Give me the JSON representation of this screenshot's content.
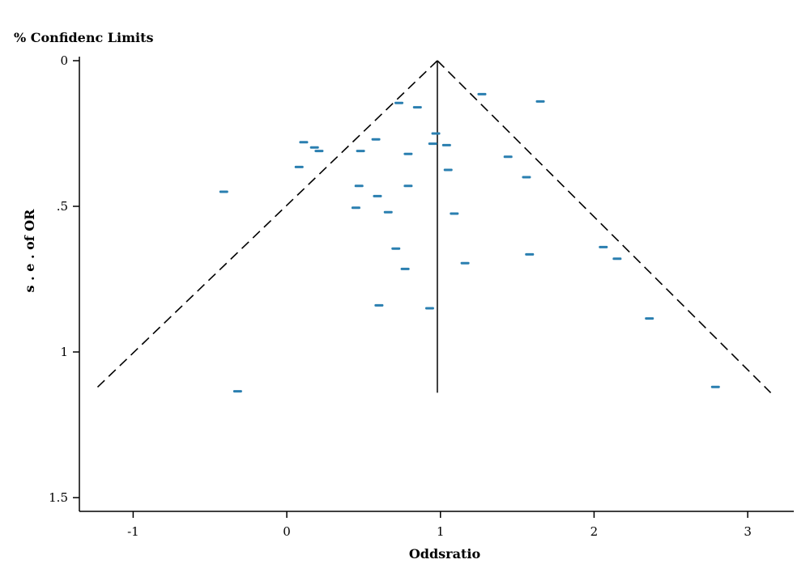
{
  "chart_data": {
    "type": "scatter",
    "title": "",
    "legend_label": "% Confidenc Limits",
    "xlabel": "Oddsratio",
    "ylabel": "s . e . of OR",
    "xlim": [
      -1.35,
      3.3
    ],
    "ylim": [
      0,
      1.55
    ],
    "y_inverted": true,
    "grid": false,
    "x_ticks": [
      -1,
      0,
      1,
      2,
      3
    ],
    "x_tick_labels": [
      "-1",
      "0",
      "1",
      "2",
      "3"
    ],
    "y_ticks": [
      0,
      0.5,
      1,
      1.5
    ],
    "y_tick_labels": [
      "0",
      ".5",
      "1",
      "1.5"
    ],
    "summary_or": 0.98,
    "vertical_line_range": [
      0,
      1.14
    ],
    "confidence_limits": {
      "left": [
        [
          0.98,
          0
        ],
        [
          -1.25,
          1.13
        ]
      ],
      "right": [
        [
          0.98,
          0
        ],
        [
          3.15,
          1.14
        ]
      ]
    },
    "points": [
      {
        "or": 1.27,
        "se": 0.115
      },
      {
        "or": 1.65,
        "se": 0.14
      },
      {
        "or": 0.73,
        "se": 0.145
      },
      {
        "or": 0.85,
        "se": 0.16
      },
      {
        "or": 0.97,
        "se": 0.25
      },
      {
        "or": 0.58,
        "se": 0.27
      },
      {
        "or": 0.11,
        "se": 0.28
      },
      {
        "or": 0.95,
        "se": 0.285
      },
      {
        "or": 1.04,
        "se": 0.29
      },
      {
        "or": 0.18,
        "se": 0.298
      },
      {
        "or": 0.21,
        "se": 0.31
      },
      {
        "or": 0.48,
        "se": 0.31
      },
      {
        "or": 0.79,
        "se": 0.32
      },
      {
        "or": 1.44,
        "se": 0.33
      },
      {
        "or": 0.08,
        "se": 0.365
      },
      {
        "or": 1.05,
        "se": 0.375
      },
      {
        "or": 1.56,
        "se": 0.4
      },
      {
        "or": 0.47,
        "se": 0.43
      },
      {
        "or": 0.79,
        "se": 0.43
      },
      {
        "or": -0.41,
        "se": 0.45
      },
      {
        "or": 0.59,
        "se": 0.465
      },
      {
        "or": 0.45,
        "se": 0.505
      },
      {
        "or": 0.66,
        "se": 0.52
      },
      {
        "or": 1.09,
        "se": 0.525
      },
      {
        "or": 2.06,
        "se": 0.64
      },
      {
        "or": 0.71,
        "se": 0.645
      },
      {
        "or": 1.58,
        "se": 0.665
      },
      {
        "or": 2.15,
        "se": 0.68
      },
      {
        "or": 1.16,
        "se": 0.695
      },
      {
        "or": 0.77,
        "se": 0.715
      },
      {
        "or": 0.6,
        "se": 0.84
      },
      {
        "or": 0.93,
        "se": 0.85
      },
      {
        "or": 2.36,
        "se": 0.885
      },
      {
        "or": 2.79,
        "se": 1.12
      },
      {
        "or": -0.32,
        "se": 1.135
      }
    ],
    "colors": {
      "points": "#2a7fb0",
      "axis": "#000000",
      "limits": "#000000"
    }
  }
}
